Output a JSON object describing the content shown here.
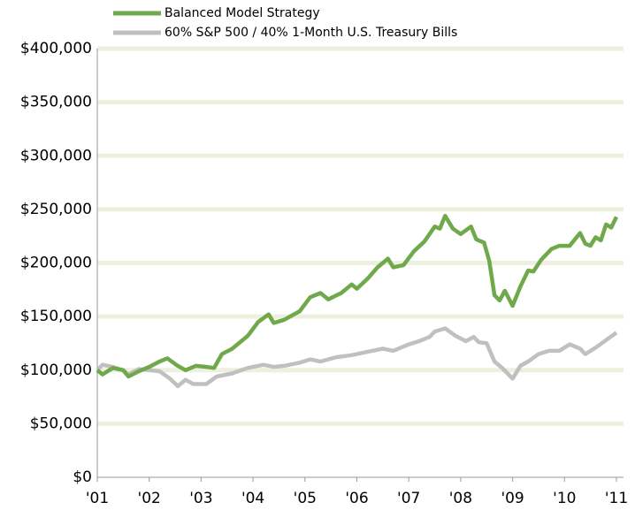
{
  "chart_data": {
    "type": "line",
    "xlim": [
      2001,
      2011
    ],
    "xticks": [
      {
        "value": 2001,
        "label": "'01"
      },
      {
        "value": 2002,
        "label": "'02"
      },
      {
        "value": 2003,
        "label": "'03"
      },
      {
        "value": 2004,
        "label": "'04"
      },
      {
        "value": 2005,
        "label": "'05"
      },
      {
        "value": 2006,
        "label": "'06"
      },
      {
        "value": 2007,
        "label": "'07"
      },
      {
        "value": 2008,
        "label": "'08"
      },
      {
        "value": 2009,
        "label": "'09"
      },
      {
        "value": 2010,
        "label": "'10"
      },
      {
        "value": 2011,
        "label": "'11"
      }
    ],
    "ylim": [
      0,
      400000
    ],
    "yticks": [
      {
        "value": 0,
        "label": "$0"
      },
      {
        "value": 50000,
        "label": "$50,000"
      },
      {
        "value": 100000,
        "label": "$100,000"
      },
      {
        "value": 150000,
        "label": "$150,000"
      },
      {
        "value": 200000,
        "label": "$200,000"
      },
      {
        "value": 250000,
        "label": "$250,000"
      },
      {
        "value": 300000,
        "label": "$300,000"
      },
      {
        "value": 350000,
        "label": "$350,000"
      },
      {
        "value": 400000,
        "label": "$400,000"
      }
    ],
    "grid": true,
    "legend": "top",
    "series": [
      {
        "name": "Balanced Model Strategy",
        "color": "#6fa94b",
        "x": [
          2001.0,
          2001.1,
          2001.3,
          2001.5,
          2001.6,
          2001.8,
          2002.0,
          2002.2,
          2002.35,
          2002.55,
          2002.7,
          2002.9,
          2003.1,
          2003.25,
          2003.4,
          2003.6,
          2003.9,
          2004.1,
          2004.3,
          2004.4,
          2004.6,
          2004.9,
          2005.1,
          2005.3,
          2005.45,
          2005.7,
          2005.9,
          2006.0,
          2006.2,
          2006.4,
          2006.6,
          2006.7,
          2006.9,
          2007.1,
          2007.3,
          2007.5,
          2007.6,
          2007.7,
          2007.85,
          2008.0,
          2008.2,
          2008.3,
          2008.45,
          2008.55,
          2008.65,
          2008.75,
          2008.85,
          2009.0,
          2009.15,
          2009.3,
          2009.4,
          2009.55,
          2009.75,
          2009.9,
          2010.1,
          2010.3,
          2010.4,
          2010.5,
          2010.6,
          2010.7,
          2010.8,
          2010.9,
          2011.0
        ],
        "values": [
          100000,
          96000,
          102000,
          100000,
          94000,
          99000,
          103000,
          108000,
          111000,
          104000,
          100000,
          104000,
          103000,
          102000,
          115000,
          120000,
          132000,
          145000,
          152000,
          144000,
          147000,
          155000,
          168000,
          172000,
          166000,
          172000,
          180000,
          176000,
          185000,
          196000,
          204000,
          196000,
          198000,
          211000,
          220000,
          234000,
          232000,
          244000,
          232000,
          227000,
          234000,
          222000,
          219000,
          202000,
          170000,
          165000,
          174000,
          160000,
          178000,
          193000,
          192000,
          203000,
          213000,
          216000,
          216000,
          228000,
          218000,
          216000,
          224000,
          221000,
          236000,
          233000,
          243000
        ]
      },
      {
        "name": "60% S&P 500 / 40% 1-Month U.S. Treasury Bills",
        "color": "#c0c0c0",
        "x": [
          2001.0,
          2001.1,
          2001.3,
          2001.5,
          2001.6,
          2001.8,
          2002.0,
          2002.2,
          2002.4,
          2002.55,
          2002.7,
          2002.85,
          2003.1,
          2003.3,
          2003.6,
          2003.9,
          2004.2,
          2004.4,
          2004.6,
          2004.9,
          2005.1,
          2005.3,
          2005.6,
          2005.9,
          2006.2,
          2006.5,
          2006.7,
          2007.0,
          2007.2,
          2007.4,
          2007.5,
          2007.7,
          2007.9,
          2008.1,
          2008.25,
          2008.35,
          2008.5,
          2008.65,
          2008.8,
          2009.0,
          2009.15,
          2009.3,
          2009.5,
          2009.7,
          2009.9,
          2010.1,
          2010.3,
          2010.4,
          2010.6,
          2010.8,
          2011.0
        ],
        "values": [
          100000,
          105000,
          103000,
          100000,
          96000,
          101000,
          100000,
          99000,
          92000,
          85000,
          91000,
          87000,
          87000,
          94000,
          97000,
          102000,
          105000,
          103000,
          104000,
          107000,
          110000,
          108000,
          112000,
          114000,
          117000,
          120000,
          118000,
          124000,
          127000,
          131000,
          136000,
          139000,
          132000,
          127000,
          131000,
          126000,
          125000,
          108000,
          102000,
          92000,
          104000,
          108000,
          115000,
          118000,
          118000,
          124000,
          120000,
          115000,
          121000,
          128000,
          135000
        ]
      }
    ]
  }
}
